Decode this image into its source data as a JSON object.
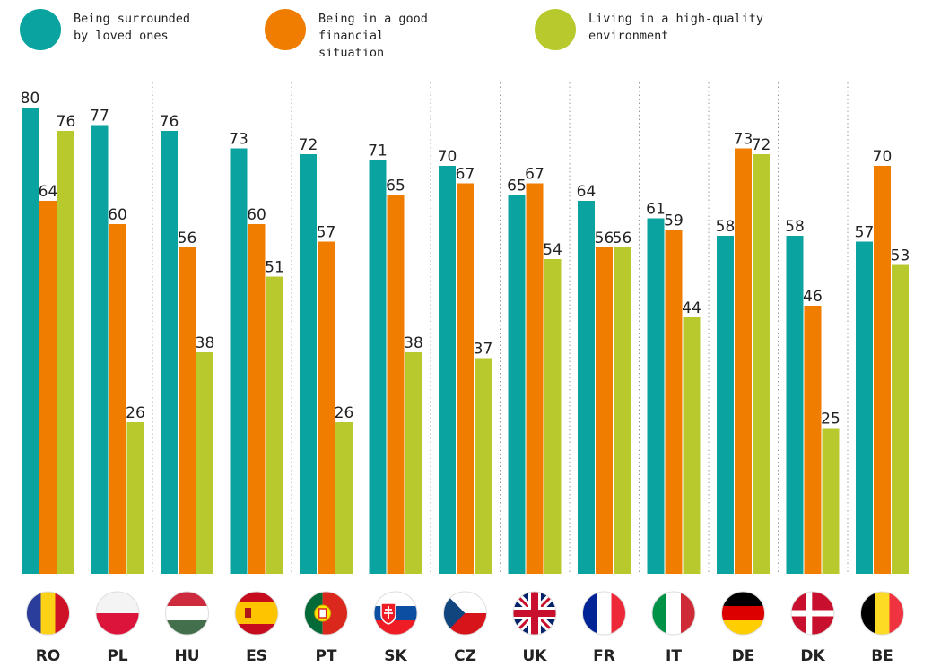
{
  "legend": [
    {
      "line1": "Being surrounded",
      "line2": "by loved ones",
      "color": "#0aa39f"
    },
    {
      "line1": "Being in a good",
      "line2": "financial situation",
      "color": "#f07d00"
    },
    {
      "line1": "Living in a high-quality",
      "line2": "environment",
      "color": "#b8c92d"
    }
  ],
  "chart_data": {
    "type": "bar",
    "categories": [
      "RO",
      "PL",
      "HU",
      "ES",
      "PT",
      "SK",
      "CZ",
      "UK",
      "FR",
      "IT",
      "DE",
      "DK",
      "BE"
    ],
    "series": [
      {
        "name": "Being surrounded by loved ones",
        "color": "#0aa39f",
        "values": [
          80,
          77,
          76,
          73,
          72,
          71,
          70,
          65,
          64,
          61,
          58,
          58,
          57
        ]
      },
      {
        "name": "Being in a good financial situation",
        "color": "#f07d00",
        "values": [
          64,
          60,
          56,
          60,
          57,
          65,
          67,
          67,
          56,
          59,
          73,
          46,
          70
        ]
      },
      {
        "name": "Living in a high-quality environment",
        "color": "#b8c92d",
        "values": [
          76,
          26,
          38,
          51,
          26,
          38,
          37,
          54,
          56,
          44,
          72,
          25,
          53
        ]
      }
    ],
    "ylim": [
      0,
      80
    ],
    "grid": false,
    "flags": [
      "romania-flag-icon",
      "poland-flag-icon",
      "hungary-flag-icon",
      "spain-flag-icon",
      "portugal-flag-icon",
      "slovakia-flag-icon",
      "czechia-flag-icon",
      "uk-flag-icon",
      "france-flag-icon",
      "italy-flag-icon",
      "germany-flag-icon",
      "denmark-flag-icon",
      "belgium-flag-icon"
    ]
  }
}
